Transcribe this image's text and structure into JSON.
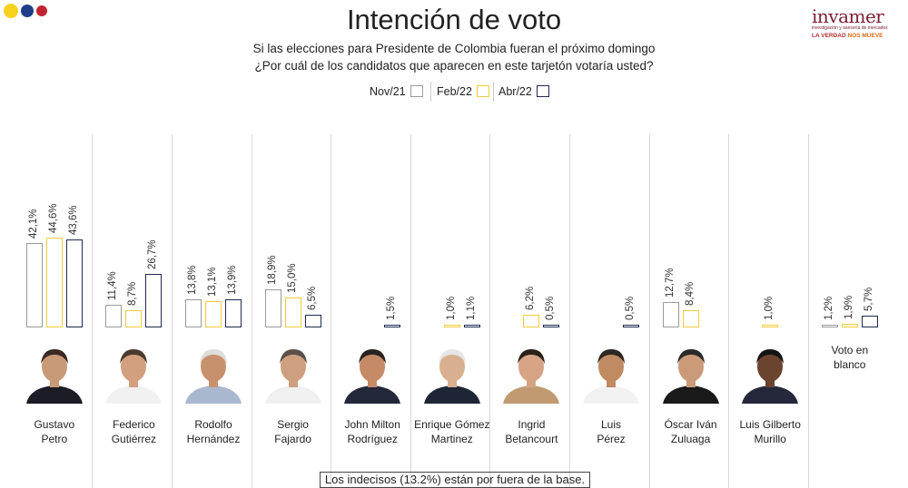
{
  "brand_colors": {
    "yellow": "#f6d21c",
    "blue": "#1f3e8a",
    "red": "#c0242f",
    "nov": "#9a9a9a",
    "feb": "#f2cc3c",
    "abr": "#1e2a50"
  },
  "title": "Intención de voto",
  "subtitle_line1": "Si las elecciones para Presidente de Colombia fueran el próximo domingo",
  "subtitle_line2": "¿Por cuál de los candidatos que aparecen en este tarjetón votaría usted?",
  "logo": {
    "name": "invamer",
    "tagline": "investigación y asesoría de mercados",
    "slogan_a": "LA VERDAD",
    "slogan_b": "NOS MUEVE"
  },
  "note": "Los indecisos (13.2%) están por fuera de la base.",
  "chart_data": {
    "type": "bar",
    "title": "Intención de voto",
    "series": [
      {
        "name": "Nov/21",
        "color": "#9a9a9a"
      },
      {
        "name": "Feb/22",
        "color": "#f2cc3c"
      },
      {
        "name": "Abr/22",
        "color": "#1e2a50"
      }
    ],
    "ylim": [
      0,
      44.6
    ],
    "grid": false,
    "legend_position": "top-center",
    "categories": [
      {
        "name1": "Gustavo",
        "name2": "Petro",
        "icon": "gustavo-petro-photo",
        "values": [
          42.1,
          44.6,
          43.6
        ],
        "labels": [
          "42,1%",
          "44,6%",
          "43,6%"
        ]
      },
      {
        "name1": "Federico",
        "name2": "Gutiérrez",
        "icon": "federico-gutierrez-photo",
        "values": [
          11.4,
          8.7,
          26.7
        ],
        "labels": [
          "11,4%",
          "8,7%",
          "26,7%"
        ]
      },
      {
        "name1": "Rodolfo",
        "name2": "Hernández",
        "icon": "rodolfo-hernandez-photo",
        "values": [
          13.8,
          13.1,
          13.9
        ],
        "labels": [
          "13,8%",
          "13,1%",
          "13,9%"
        ]
      },
      {
        "name1": "Sergio",
        "name2": "Fajardo",
        "icon": "sergio-fajardo-photo",
        "values": [
          18.9,
          15.0,
          6.5
        ],
        "labels": [
          "18,9%",
          "15,0%",
          "6,5%"
        ]
      },
      {
        "name1": "John Milton",
        "name2": "Rodríguez",
        "icon": "john-milton-rodriguez-photo",
        "values": [
          null,
          null,
          1.5
        ],
        "labels": [
          "",
          "",
          "1,5%"
        ]
      },
      {
        "name1": "Enrique Gómez",
        "name2": "Martinez",
        "icon": "enrique-gomez-martinez-photo",
        "values": [
          null,
          1.0,
          1.1
        ],
        "labels": [
          "",
          "1,0%",
          "1,1%"
        ]
      },
      {
        "name1": "Ingrid",
        "name2": "Betancourt",
        "icon": "ingrid-betancourt-photo",
        "values": [
          null,
          6.2,
          0.5
        ],
        "labels": [
          "",
          "6,2%",
          "0,5%"
        ]
      },
      {
        "name1": "Luis",
        "name2": "Pérez",
        "icon": "luis-perez-photo",
        "values": [
          null,
          null,
          0.5
        ],
        "labels": [
          "",
          "",
          "0,5%"
        ]
      },
      {
        "name1": "Óscar Iván",
        "name2": "Zuluaga",
        "icon": "oscar-ivan-zuluaga-photo",
        "values": [
          12.7,
          8.4,
          null
        ],
        "labels": [
          "12,7%",
          "8,4%",
          ""
        ]
      },
      {
        "name1": "Luis Gilberto",
        "name2": "Murillo",
        "icon": "luis-gilberto-murillo-photo",
        "values": [
          null,
          1.0,
          null
        ],
        "labels": [
          "",
          "1,0%",
          ""
        ]
      },
      {
        "name1": "Voto en",
        "name2": "blanco",
        "icon": "",
        "values": [
          1.2,
          1.9,
          5.7
        ],
        "labels": [
          "1,2%",
          "1,9%",
          "5,7%"
        ]
      }
    ]
  }
}
